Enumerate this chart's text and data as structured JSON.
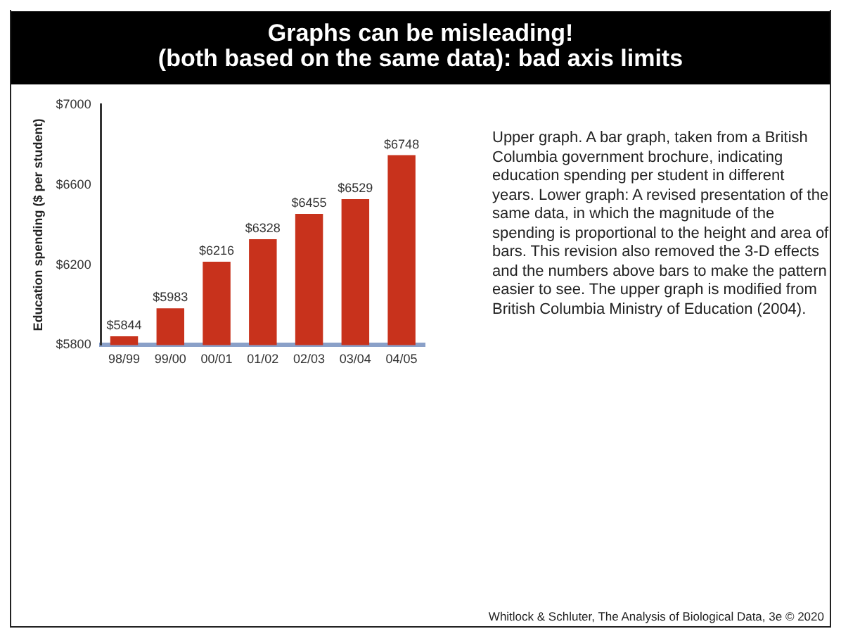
{
  "chart_data": {
    "type": "bar",
    "title": "Graphs can be misleading!\n(both based on the same data): bad axis limits",
    "ylabel": "Education spending ($ per student)",
    "categories": [
      "98/99",
      "99/00",
      "00/01",
      "01/02",
      "02/03",
      "03/04",
      "04/05"
    ],
    "values": [
      5844,
      5983,
      6216,
      6328,
      6455,
      6529,
      6748
    ],
    "value_labels": [
      "$5844",
      "$5983",
      "$6216",
      "$6328",
      "$6455",
      "$6529",
      "$6748"
    ],
    "color": "#c8321c",
    "ylim": [
      5800,
      7000
    ],
    "yticks": [
      {
        "value": 5800,
        "label": "$5800"
      },
      {
        "value": 6200,
        "label": "$6200"
      },
      {
        "value": 6600,
        "label": "$6600"
      },
      {
        "value": 7000,
        "label": "$7000"
      }
    ],
    "grid": false,
    "legend": false,
    "annotations": [
      "Upper graph. A bar graph, taken from a British Columbia government brochure, indicating education spending per student in different years. Lower graph: A revised presentation of the same data, in which the magnitude of the spending is proportional to the height and area of bars. This revision also removed the 3-D effects and the numbers above bars to make the pattern easier to see. The upper graph is modified from British Columbia Ministry of Education (2004).",
      "Whitlock & Schluter, The Analysis of Biological Data, 3e © 2020"
    ]
  }
}
